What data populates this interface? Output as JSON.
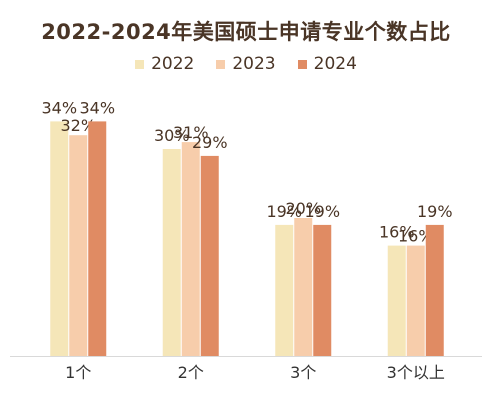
{
  "chart_data": {
    "type": "bar",
    "title": "2022-2024年美国硕士申请专业个数占比",
    "xlabel": "",
    "ylabel": "",
    "ylim": [
      0,
      40
    ],
    "grid": false,
    "legend_position": "top-center",
    "categories": [
      "1个",
      "2个",
      "3个",
      "3个以上"
    ],
    "series": [
      {
        "name": "2022",
        "color": "#f5e6b8",
        "values": [
          34,
          30,
          19,
          16
        ],
        "labels": [
          "34%",
          "30%",
          "19%",
          "16%"
        ]
      },
      {
        "name": "2023",
        "color": "#f7cdab",
        "values": [
          32,
          31,
          20,
          16
        ],
        "labels": [
          "32%",
          "31%",
          "20%",
          "16%"
        ]
      },
      {
        "name": "2024",
        "color": "#e08b63",
        "values": [
          34,
          29,
          19,
          19
        ],
        "labels": [
          "34%",
          "29%",
          "19%",
          "19%"
        ]
      }
    ]
  }
}
